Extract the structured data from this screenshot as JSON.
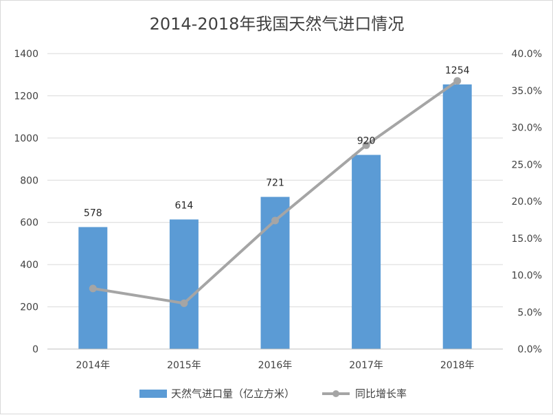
{
  "chart_data": {
    "type": "bar+line",
    "title": "2014-2018年我国天然气进口情况",
    "categories": [
      "2014年",
      "2015年",
      "2016年",
      "2017年",
      "2018年"
    ],
    "series": [
      {
        "name": "天然气进口量（亿立方米）",
        "type": "bar",
        "axis": "left",
        "values": [
          578,
          614,
          721,
          920,
          1254
        ],
        "data_labels": [
          "578",
          "614",
          "721",
          "920",
          "1254"
        ],
        "color": "#5b9bd5"
      },
      {
        "name": "同比增长率",
        "type": "line",
        "axis": "right",
        "values": [
          8.2,
          6.2,
          17.4,
          27.6,
          36.3
        ],
        "color": "#a5a5a5"
      }
    ],
    "y_left": {
      "min": 0,
      "max": 1400,
      "ticks": [
        "0",
        "200",
        "400",
        "600",
        "800",
        "1000",
        "1200",
        "1400"
      ]
    },
    "y_right": {
      "min": 0,
      "max": 40,
      "ticks": [
        "0.0%",
        "5.0%",
        "10.0%",
        "15.0%",
        "20.0%",
        "25.0%",
        "30.0%",
        "35.0%",
        "40.0%"
      ]
    },
    "grid": true,
    "legend_position": "bottom",
    "gridline_color": "#d9d9d9",
    "axis_line_color": "#bfbfbf"
  }
}
